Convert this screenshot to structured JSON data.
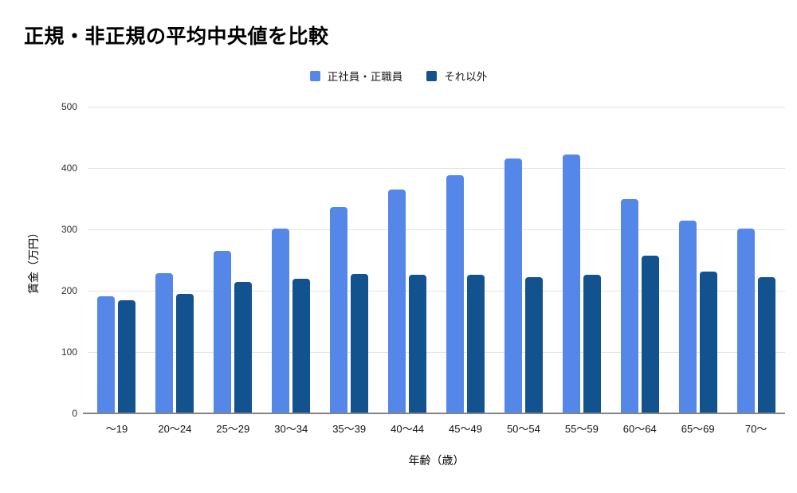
{
  "title": "正規・非正規の平均中央値を比較",
  "axis": {
    "x_title": "年齢（歳）",
    "y_title": "賃金（万円）"
  },
  "chart_data": {
    "type": "bar",
    "title": "正規・非正規の平均中央値を比較",
    "categories": [
      "～19",
      "20～24",
      "25～29",
      "30～34",
      "35～39",
      "40～44",
      "45～49",
      "50～54",
      "55～59",
      "60～64",
      "65～69",
      "70～"
    ],
    "series": [
      {
        "name": "正社員・正職員",
        "color": "#5587e9",
        "values": [
          191,
          228,
          265,
          301,
          337,
          365,
          388,
          416,
          422,
          349,
          314,
          301
        ]
      },
      {
        "name": "それ以外",
        "color": "#12528f",
        "values": [
          184,
          195,
          214,
          219,
          227,
          226,
          226,
          222,
          226,
          257,
          231,
          222
        ]
      }
    ],
    "xlabel": "年齢（歳）",
    "ylabel": "賃金（万円）",
    "ylim": [
      0,
      500
    ],
    "yticks": [
      0,
      100,
      200,
      300,
      400,
      500
    ],
    "grid": true,
    "legend_position": "top",
    "colors": {
      "gridline": "#e4e4e4",
      "baseline": "#848484",
      "tick_text": "#2e2e2e",
      "title_text": "#000000"
    }
  }
}
